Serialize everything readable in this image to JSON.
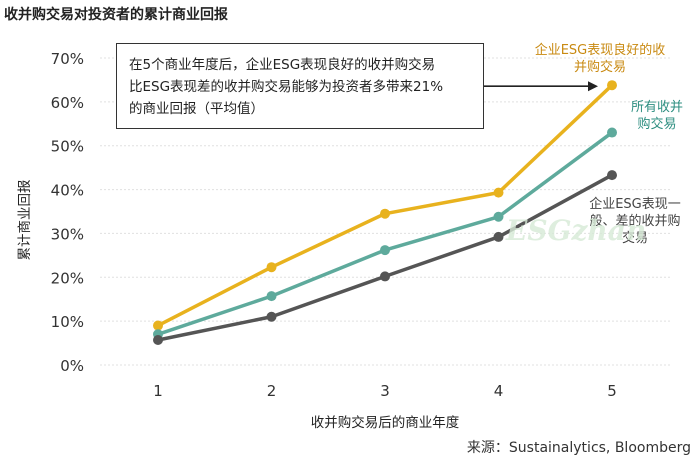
{
  "title": "收并购交易对投资者的累计商业回报",
  "callout_lines": [
    "在5个商业年度后，企业ESG表现良好的收并购交易",
    "比ESG表现差的收并购交易能够为投资者多带来21%",
    "的商业回报（平均值）"
  ],
  "source": "来源：Sustainalytics, Bloomberg",
  "watermark": "ESGzhan",
  "chart_data": {
    "type": "line",
    "title": "收并购交易对投资者的累计商业回报",
    "xlabel": "收并购交易后的商业年度",
    "ylabel": "累计商业回报",
    "x": [
      1,
      2,
      3,
      4,
      5
    ],
    "x_tick_labels": [
      "1",
      "2",
      "3",
      "4",
      "5"
    ],
    "y_tick_labels": [
      "0%",
      "10%",
      "20%",
      "30%",
      "40%",
      "50%",
      "60%",
      "70%"
    ],
    "ylim": [
      0,
      70
    ],
    "grid": true,
    "series": [
      {
        "name": "企业ESG表现良好的收并购交易",
        "label_lines": [
          "企业ESG表现良好的收",
          "并购交易"
        ],
        "color": "#e8b21e",
        "values": [
          9,
          22.3,
          34.5,
          39.3,
          63.8
        ]
      },
      {
        "name": "所有收并购交易",
        "label_lines": [
          "所有收并",
          "购交易"
        ],
        "color": "#5eaa9c",
        "values": [
          7,
          15.7,
          26.2,
          33.8,
          53
        ]
      },
      {
        "name": "企业ESG表现一般、差的收并购交易",
        "label_lines": [
          "企业ESG表现一",
          "般、差的收并购",
          "交易"
        ],
        "color": "#555555",
        "values": [
          5.7,
          11,
          20.2,
          29.2,
          43.3
        ]
      }
    ]
  }
}
